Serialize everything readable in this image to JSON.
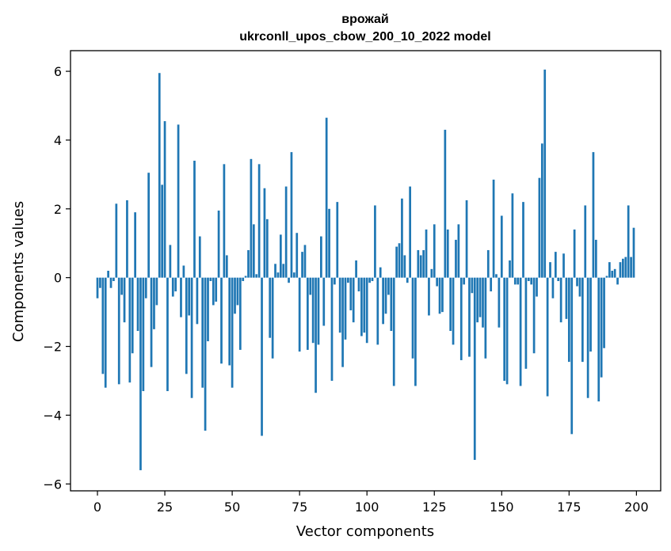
{
  "chart_data": {
    "type": "bar",
    "title": "врожай",
    "subtitle": "ukrconll_upos_cbow_200_10_2022 model",
    "xlabel": "Vector components",
    "ylabel": "Components values",
    "xlim": [
      -10,
      209
    ],
    "ylim": [
      -6.2,
      6.6
    ],
    "xticks": [
      0,
      25,
      50,
      75,
      100,
      125,
      150,
      175,
      200
    ],
    "yticks": [
      -6,
      -4,
      -2,
      0,
      2,
      4,
      6
    ],
    "ytick_labels": [
      "−6",
      "−4",
      "−2",
      "0",
      "2",
      "4",
      "6"
    ],
    "grid": false,
    "bar_color": "#1f77b4",
    "x": [
      0,
      1,
      2,
      3,
      4,
      5,
      6,
      7,
      8,
      9,
      10,
      11,
      12,
      13,
      14,
      15,
      16,
      17,
      18,
      19,
      20,
      21,
      22,
      23,
      24,
      25,
      26,
      27,
      28,
      29,
      30,
      31,
      32,
      33,
      34,
      35,
      36,
      37,
      38,
      39,
      40,
      41,
      42,
      43,
      44,
      45,
      46,
      47,
      48,
      49,
      50,
      51,
      52,
      53,
      54,
      55,
      56,
      57,
      58,
      59,
      60,
      61,
      62,
      63,
      64,
      65,
      66,
      67,
      68,
      69,
      70,
      71,
      72,
      73,
      74,
      75,
      76,
      77,
      78,
      79,
      80,
      81,
      82,
      83,
      84,
      85,
      86,
      87,
      88,
      89,
      90,
      91,
      92,
      93,
      94,
      95,
      96,
      97,
      98,
      99,
      100,
      101,
      102,
      103,
      104,
      105,
      106,
      107,
      108,
      109,
      110,
      111,
      112,
      113,
      114,
      115,
      116,
      117,
      118,
      119,
      120,
      121,
      122,
      123,
      124,
      125,
      126,
      127,
      128,
      129,
      130,
      131,
      132,
      133,
      134,
      135,
      136,
      137,
      138,
      139,
      140,
      141,
      142,
      143,
      144,
      145,
      146,
      147,
      148,
      149,
      150,
      151,
      152,
      153,
      154,
      155,
      156,
      157,
      158,
      159,
      160,
      161,
      162,
      163,
      164,
      165,
      166,
      167,
      168,
      169,
      170,
      171,
      172,
      173,
      174,
      175,
      176,
      177,
      178,
      179,
      180,
      181,
      182,
      183,
      184,
      185,
      186,
      187,
      188,
      189,
      190,
      191,
      192,
      193,
      194,
      195,
      196,
      197,
      198,
      199
    ],
    "values": [
      -0.6,
      -0.3,
      -2.8,
      -3.2,
      0.2,
      -0.3,
      -0.1,
      2.15,
      -3.1,
      -0.5,
      -1.3,
      2.25,
      -3.05,
      -2.2,
      1.9,
      -1.55,
      -5.6,
      -3.3,
      -0.6,
      3.05,
      -2.6,
      -1.5,
      -0.8,
      5.95,
      2.7,
      4.55,
      -3.3,
      0.95,
      -0.55,
      -0.4,
      4.45,
      -1.15,
      0.35,
      -2.8,
      -1.1,
      -3.5,
      3.4,
      -1.35,
      1.2,
      -3.2,
      -4.45,
      -1.85,
      -0.1,
      -0.8,
      -0.7,
      1.95,
      -2.5,
      3.3,
      0.65,
      -2.55,
      -3.2,
      -1.05,
      -0.8,
      -2.1,
      -0.1,
      0.05,
      0.8,
      3.45,
      1.55,
      0.1,
      3.3,
      -4.6,
      2.6,
      1.7,
      -1.75,
      -2.35,
      0.4,
      0.15,
      1.25,
      0.4,
      2.65,
      -0.15,
      3.65,
      0.15,
      1.3,
      -2.15,
      0.75,
      0.95,
      -2.1,
      -0.5,
      -1.9,
      -3.35,
      -1.95,
      1.2,
      -1.4,
      4.65,
      2.0,
      -3.0,
      -0.2,
      2.2,
      -1.6,
      -2.6,
      -1.8,
      -0.15,
      -0.95,
      -1.3,
      0.5,
      -0.4,
      -1.7,
      -1.6,
      -1.9,
      -0.15,
      -0.1,
      2.1,
      -1.95,
      0.3,
      -1.35,
      -1.05,
      -0.5,
      -1.55,
      -3.15,
      0.9,
      1.0,
      2.3,
      0.65,
      -0.15,
      2.65,
      -2.35,
      -3.15,
      0.8,
      0.65,
      0.8,
      1.4,
      -1.1,
      0.25,
      1.55,
      -0.25,
      -1.05,
      -1.0,
      4.3,
      1.4,
      -1.55,
      -1.95,
      1.1,
      1.55,
      -2.4,
      -0.2,
      2.25,
      -2.3,
      -0.45,
      -5.3,
      -1.3,
      -1.15,
      -1.45,
      -2.35,
      0.8,
      -0.4,
      2.85,
      0.1,
      -1.45,
      1.8,
      -3.0,
      -3.1,
      0.5,
      2.45,
      -0.2,
      -0.2,
      -3.15,
      2.2,
      -2.65,
      -0.1,
      -0.2,
      -2.2,
      -0.55,
      2.9,
      3.9,
      6.05,
      -3.45,
      0.45,
      -0.6,
      0.75,
      -0.1,
      -1.3,
      0.7,
      -1.2,
      -2.45,
      -4.55,
      1.4,
      -0.25,
      -0.55,
      -2.45,
      2.1,
      -3.5,
      -2.15,
      3.65,
      1.1,
      -3.6,
      -2.9,
      -2.05,
      0.05,
      0.45,
      0.2,
      0.25,
      -0.2,
      0.45,
      0.55,
      0.6,
      2.1,
      0.6,
      1.45
    ]
  }
}
